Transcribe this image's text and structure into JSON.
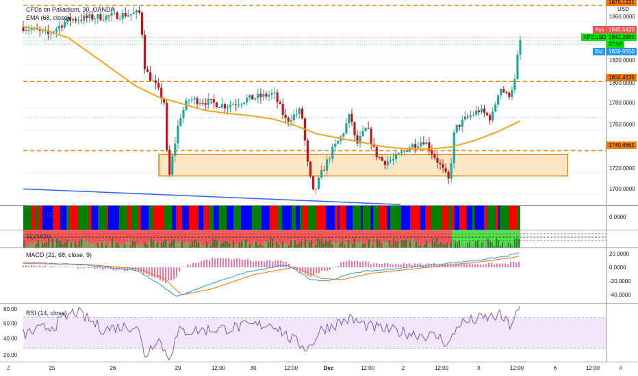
{
  "header": {
    "symbol_title": "CFDs on Palladium, 30, OANDA",
    "ema_label": "EMA (68, close)"
  },
  "price_axis": {
    "currency": "USD",
    "ticks": [
      "1860.0000",
      "1840.0000",
      "1820.0000",
      "1800.0000",
      "1780.0000",
      "1760.0000",
      "1740.0000",
      "1720.0000",
      "1700.0000"
    ],
    "level_top": "1875.1221",
    "ask_label": "Ask",
    "ask_value": "1845.5420",
    "symbol_tag": "XPDUSD",
    "last_value": "1842.2980",
    "countdown": "07:56",
    "bid_label": "Bid",
    "bid_value": "1839.0550",
    "level_1": "1804.4636",
    "level_2": "1740.4661"
  },
  "indicators": {
    "pane1_label": "ES_LB (3, ...)",
    "pane1_value": "0.0000",
    "pane2_label": "SQZMOM",
    "macd_label": "MACD (21, 68, close, 9)",
    "macd_ticks": [
      "20.0000",
      "0.0000",
      "-20.0000",
      "-40.0000"
    ],
    "rsi_label": "RSI (14, close)",
    "rsi_ticks": [
      "80.00",
      "60.00",
      "40.00",
      "20.00"
    ]
  },
  "time_axis": {
    "labels": [
      "25",
      "26",
      "29",
      "12:00",
      "30",
      "12:00",
      "Dec",
      "12:00",
      "2",
      "12:00",
      "3",
      "12:00",
      "6",
      "12:00"
    ]
  },
  "footer": {
    "zoom_label": "Z",
    "auto_label": "A"
  },
  "colors": {
    "up": "#26a69a",
    "down": "#b71c1c",
    "ema": "#f7a21b",
    "level": "#f57c00",
    "ask": "#ef5350",
    "bid": "#2196f3",
    "last": "#00e600",
    "trend": "#2962ff",
    "macd": "#2196f3",
    "signal": "#ff6d00",
    "rsi": "#7e57c2"
  },
  "chart_data": {
    "type": "candlestick",
    "ylim": [
      1690,
      1880
    ],
    "x": [
      "25",
      "26",
      "29",
      "30",
      "Dec",
      "2",
      "3",
      "6"
    ],
    "ema": [
      1855,
      1852,
      1845,
      1830,
      1815,
      1800,
      1790,
      1784,
      1778,
      1775,
      1773,
      1770,
      1764,
      1756,
      1752,
      1748,
      1744,
      1742,
      1742,
      1744,
      1750,
      1758,
      1768
    ],
    "levels": [
      1875.1221,
      1804.4636,
      1740.4661
    ],
    "zone": [
      1717,
      1737
    ],
    "last": 1842.298
  }
}
